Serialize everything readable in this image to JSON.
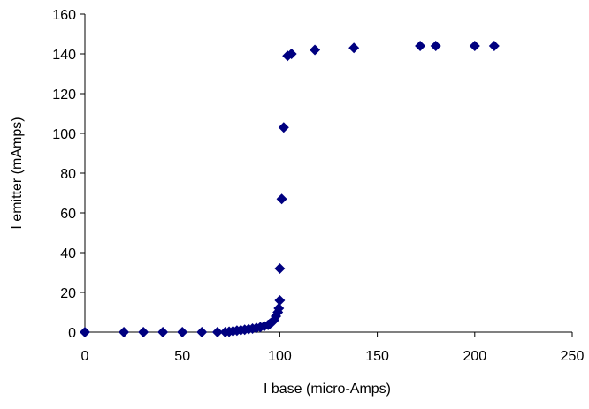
{
  "chart_data": {
    "type": "scatter",
    "title": "",
    "xlabel": "I base (micro-Amps)",
    "ylabel": "I emitter (mAmps)",
    "xlim": [
      0,
      250
    ],
    "ylim": [
      0,
      160
    ],
    "x_ticks": [
      0,
      50,
      100,
      150,
      200,
      250
    ],
    "y_ticks": [
      0,
      20,
      40,
      60,
      80,
      100,
      120,
      140,
      160
    ],
    "grid": false,
    "legend": "none",
    "marker": "diamond",
    "marker_color": "#000080",
    "series": [
      {
        "points": [
          [
            0,
            0
          ],
          [
            20,
            0
          ],
          [
            30,
            0
          ],
          [
            40,
            0
          ],
          [
            50,
            0
          ],
          [
            60,
            0
          ],
          [
            68,
            0
          ],
          [
            72,
            0
          ],
          [
            74,
            0.2
          ],
          [
            76,
            0.5
          ],
          [
            78,
            0.8
          ],
          [
            80,
            1
          ],
          [
            82,
            1.2
          ],
          [
            84,
            1.5
          ],
          [
            86,
            1.8
          ],
          [
            88,
            2.1
          ],
          [
            90,
            2.5
          ],
          [
            92,
            3
          ],
          [
            94,
            3.6
          ],
          [
            95,
            4.3
          ],
          [
            96,
            5
          ],
          [
            97,
            6
          ],
          [
            98,
            8
          ],
          [
            99,
            10
          ],
          [
            99.5,
            12
          ],
          [
            100,
            16
          ],
          [
            100,
            32
          ],
          [
            101,
            67
          ],
          [
            102,
            103
          ],
          [
            104,
            139
          ],
          [
            106,
            140
          ],
          [
            118,
            142
          ],
          [
            138,
            143
          ],
          [
            172,
            144
          ],
          [
            180,
            144
          ],
          [
            200,
            144
          ],
          [
            210,
            144
          ]
        ]
      }
    ]
  }
}
